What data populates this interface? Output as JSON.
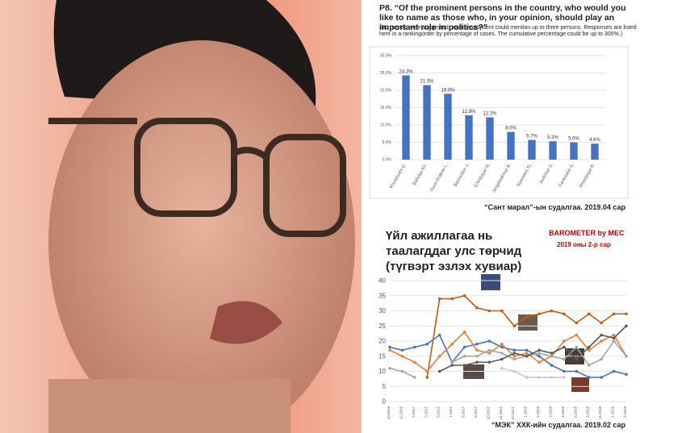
{
  "chart_data": [
    {
      "type": "bar",
      "title": "P8. “Of the prominent persons in the country, who would you like to name as those who, in your opinion, should play an important role in politics?”",
      "subtitle": "(No names were suggested, each respondent could mention up to three persons. Responses are listed here in a rankingorder by  percentage of cases. The cumulative percentage could be up to 300%.)",
      "caption": "“Сант марал”-ын судалгаа. 2019.04 сар",
      "categories": [
        "Khurelsukh U.",
        "Battulga Kh.",
        "Oyun-Erdene L.",
        "Batzandan J.",
        "Enkhbayar N.",
        "Jargalsaikhan B.",
        "Nyamdorj Ts.",
        "Javkhlan S.",
        "Ganbaatar S.",
        "Amarjargal R."
      ],
      "values": [
        24.3,
        21.5,
        19.0,
        12.8,
        12.2,
        8.0,
        5.7,
        5.3,
        5.0,
        4.6
      ],
      "value_labels": [
        "24.3%",
        "21.5%",
        "19.0%",
        "12.8%",
        "12.2%",
        "8.0%",
        "5.7%",
        "5.3%",
        "5.0%",
        "4.6%"
      ],
      "color": "#4472c4",
      "ylim": [
        0,
        30
      ],
      "yticks": [
        {
          "value": 0,
          "label": "0.0%"
        },
        {
          "value": 5,
          "label": "5.0%"
        },
        {
          "value": 10,
          "label": "10.0%"
        },
        {
          "value": 15,
          "label": "15.0%"
        },
        {
          "value": 20,
          "label": "20.0%"
        },
        {
          "value": 25,
          "label": "25.0%"
        },
        {
          "value": 30,
          "label": "30.0%"
        }
      ],
      "grid": true
    },
    {
      "type": "line",
      "title": "Үйл ажиллагаа нь таалагддаг улс төрчид (түгвэрт эзлэх хувиар)",
      "annotations": [
        "BAROMETER by MEC",
        "2019 оны 2-р сар"
      ],
      "caption": "“МЭК” ХХК-ийн судалгаа. 2019.02 сар",
      "categories": [
        "10.2016",
        "12.2016",
        "2.2017",
        "3.2017",
        "5.2017",
        "7.2017",
        "8.2017",
        "9.2017",
        "10.2017",
        "11.2017",
        "12.2017",
        "1.2018",
        "2.2018",
        "3.2018",
        "4.2018",
        "6.2018",
        "8.2018",
        "11.2018",
        "1.2019",
        "2.2019"
      ],
      "series": [
        {
          "color": "#c55a11",
          "values": [
            null,
            null,
            null,
            8,
            34,
            34,
            35,
            31,
            30,
            30,
            25,
            28,
            29,
            30,
            29,
            26,
            29,
            26,
            29,
            29
          ]
        },
        {
          "color": "#4472c4",
          "values": [
            18,
            17,
            18,
            19,
            22,
            13,
            18,
            19,
            20,
            18,
            17,
            17,
            15,
            12,
            10,
            10,
            8,
            8,
            10,
            9
          ]
        },
        {
          "color": "#ed7d31",
          "values": [
            17,
            15,
            13,
            10,
            15,
            19,
            23,
            17,
            16,
            19,
            15,
            16,
            13,
            15,
            20,
            22,
            17,
            20,
            22,
            15
          ]
        },
        {
          "color": "#a5a5a5",
          "values": [
            11,
            10,
            8,
            null,
            null,
            13,
            15,
            15,
            17,
            16,
            14,
            15,
            16,
            15,
            14,
            18,
            12,
            14,
            20,
            15
          ]
        },
        {
          "color": "#595959",
          "values": [
            null,
            null,
            null,
            null,
            10,
            12,
            12,
            13,
            13,
            14,
            16,
            15,
            17,
            16,
            18,
            14,
            18,
            22,
            21,
            25
          ]
        },
        {
          "color": "#c9c9c9",
          "values": [
            null,
            null,
            null,
            null,
            null,
            null,
            null,
            null,
            null,
            11,
            10,
            8,
            8,
            8,
            8,
            null,
            null,
            null,
            null,
            null
          ]
        }
      ],
      "ylim": [
        0,
        40
      ],
      "yticks": [
        0,
        5,
        10,
        15,
        20,
        25,
        30,
        35,
        40
      ],
      "grid": true
    }
  ]
}
